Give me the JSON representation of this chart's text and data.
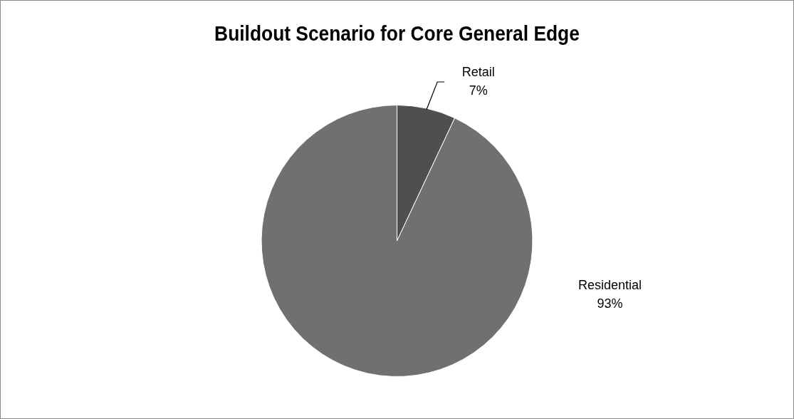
{
  "chart_data": {
    "type": "pie",
    "title": "Buildout Scenario for Core General Edge",
    "categories": [
      "Retail",
      "Residential"
    ],
    "values": [
      7,
      93
    ],
    "colors": [
      "#4f4f4f",
      "#707070"
    ],
    "value_labels": [
      "7%",
      "93%"
    ],
    "legend": false
  }
}
